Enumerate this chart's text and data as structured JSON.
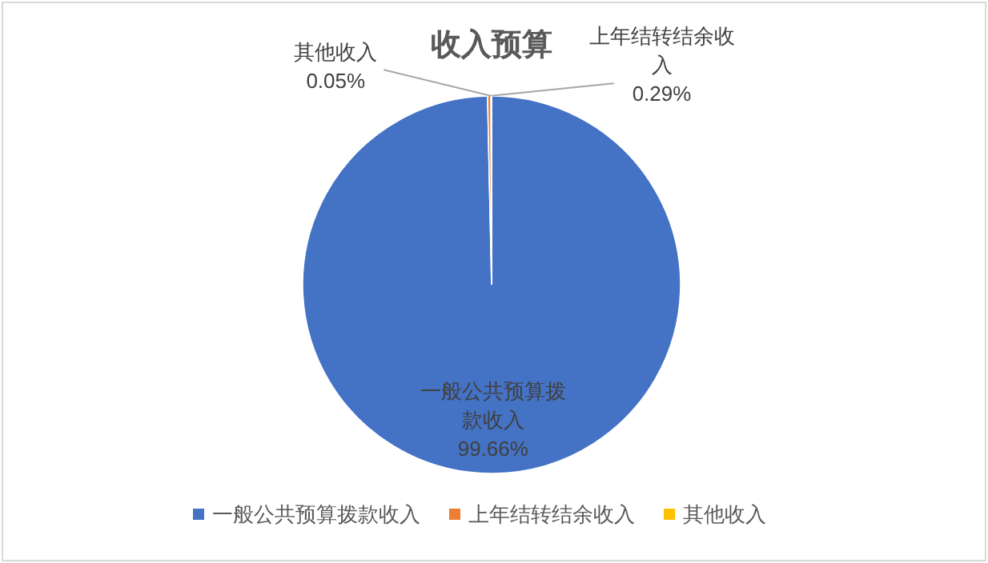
{
  "chart_data": {
    "type": "pie",
    "title": "收入预算",
    "categories": [
      "一般公共预算拨款收入",
      "上年结转结余收入",
      "其他收入"
    ],
    "values": [
      99.66,
      0.29,
      0.05
    ],
    "value_labels": [
      "99.66%",
      "0.29%",
      "0.05%"
    ],
    "colors": [
      "#4472c4",
      "#ed7d31",
      "#ffc000"
    ],
    "legend": "bottom"
  }
}
